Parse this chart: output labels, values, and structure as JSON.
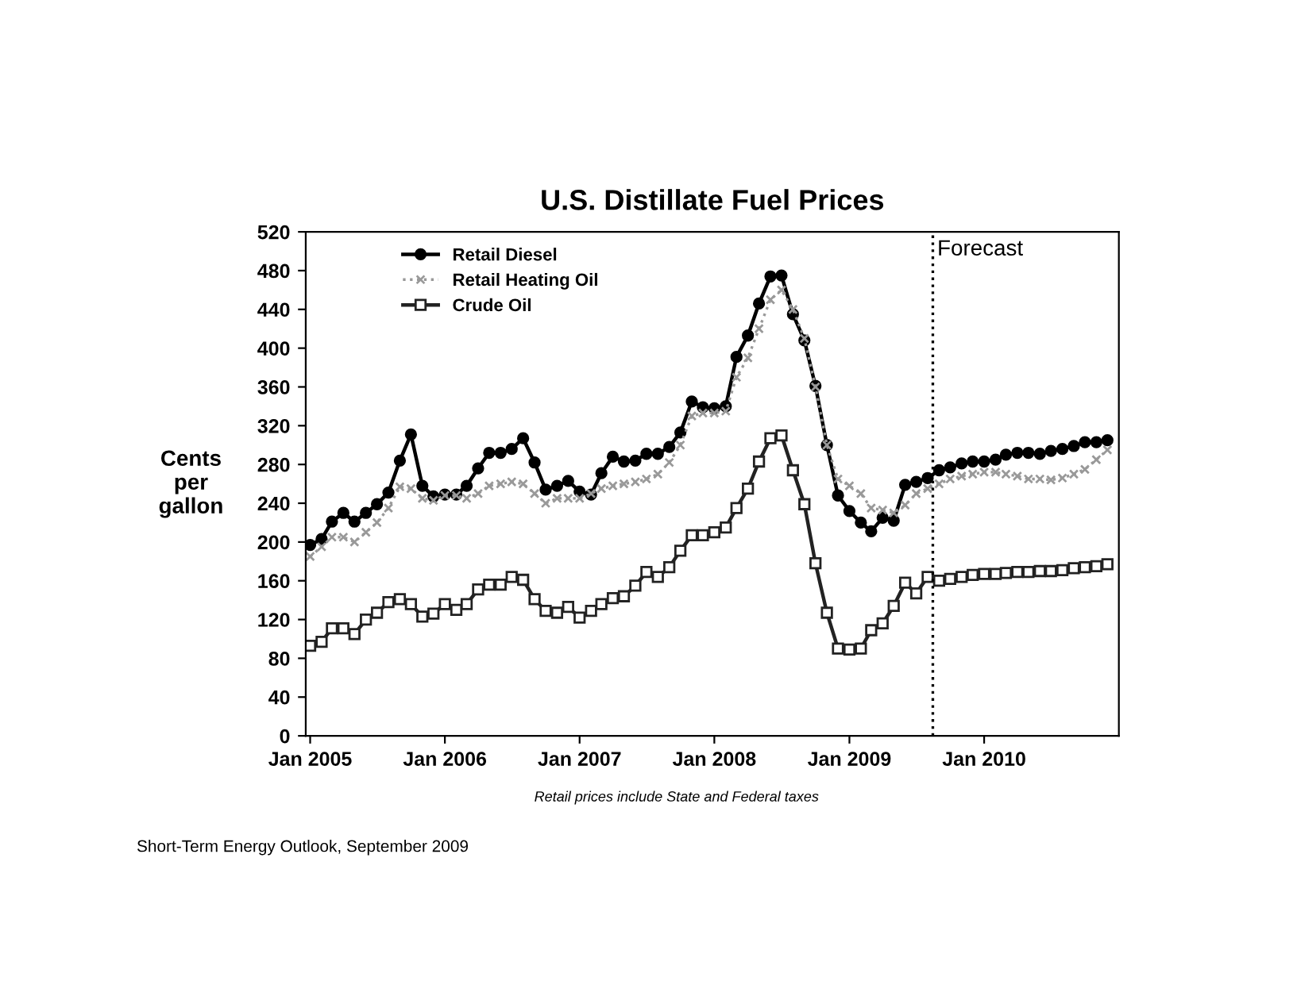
{
  "chart_data": {
    "type": "line",
    "title": "U.S. Distillate Fuel Prices",
    "ylabel": "Cents\nper\ngallon",
    "x": [
      "2005-01",
      "2005-02",
      "2005-03",
      "2005-04",
      "2005-05",
      "2005-06",
      "2005-07",
      "2005-08",
      "2005-09",
      "2005-10",
      "2005-11",
      "2005-12",
      "2006-01",
      "2006-02",
      "2006-03",
      "2006-04",
      "2006-05",
      "2006-06",
      "2006-07",
      "2006-08",
      "2006-09",
      "2006-10",
      "2006-11",
      "2006-12",
      "2007-01",
      "2007-02",
      "2007-03",
      "2007-04",
      "2007-05",
      "2007-06",
      "2007-07",
      "2007-08",
      "2007-09",
      "2007-10",
      "2007-11",
      "2007-12",
      "2008-01",
      "2008-02",
      "2008-03",
      "2008-04",
      "2008-05",
      "2008-06",
      "2008-07",
      "2008-08",
      "2008-09",
      "2008-10",
      "2008-11",
      "2008-12",
      "2009-01",
      "2009-02",
      "2009-03",
      "2009-04",
      "2009-05",
      "2009-06",
      "2009-07",
      "2009-08",
      "2009-09",
      "2009-10",
      "2009-11",
      "2009-12",
      "2010-01",
      "2010-02",
      "2010-03",
      "2010-04",
      "2010-05",
      "2010-06",
      "2010-07",
      "2010-08",
      "2010-09",
      "2010-10",
      "2010-11",
      "2010-12"
    ],
    "series": [
      {
        "name": "Retail Diesel",
        "color": "#000000",
        "marker": "circle",
        "line_style": "solid",
        "values": [
          197,
          203,
          221,
          230,
          221,
          230,
          239,
          251,
          284,
          311,
          258,
          247,
          249,
          249,
          258,
          276,
          292,
          292,
          296,
          307,
          282,
          254,
          258,
          263,
          252,
          249,
          271,
          288,
          283,
          284,
          291,
          291,
          298,
          313,
          345,
          339,
          338,
          340,
          391,
          413,
          446,
          474,
          475,
          435,
          408,
          361,
          300,
          248,
          232,
          220,
          211,
          225,
          222,
          259,
          262,
          266,
          274,
          277,
          281,
          283,
          283,
          285,
          290,
          292,
          292,
          291,
          294,
          296,
          299,
          303,
          303,
          305
        ]
      },
      {
        "name": "Retail Heating Oil",
        "color": "#999999",
        "marker": "cross",
        "line_style": "dotted",
        "values": [
          185,
          195,
          205,
          205,
          200,
          210,
          220,
          235,
          257,
          255,
          245,
          243,
          248,
          248,
          245,
          250,
          258,
          260,
          262,
          260,
          250,
          240,
          245,
          245,
          245,
          250,
          255,
          258,
          260,
          262,
          265,
          270,
          282,
          300,
          330,
          333,
          333,
          335,
          370,
          390,
          420,
          450,
          460,
          440,
          410,
          360,
          300,
          265,
          258,
          250,
          235,
          233,
          230,
          238,
          250,
          255,
          260,
          265,
          268,
          270,
          272,
          272,
          270,
          268,
          265,
          265,
          264,
          266,
          270,
          275,
          285,
          295
        ]
      },
      {
        "name": "Crude Oil",
        "color": "#222222",
        "marker": "square",
        "line_style": "solid",
        "values": [
          93,
          97,
          111,
          111,
          105,
          120,
          127,
          138,
          141,
          136,
          123,
          126,
          136,
          130,
          136,
          151,
          156,
          156,
          164,
          161,
          141,
          129,
          127,
          133,
          122,
          129,
          136,
          142,
          144,
          155,
          169,
          164,
          174,
          191,
          207,
          207,
          210,
          215,
          235,
          255,
          283,
          307,
          310,
          274,
          239,
          178,
          127,
          90,
          89,
          90,
          109,
          116,
          134,
          158,
          147,
          164,
          160,
          162,
          164,
          166,
          167,
          167,
          168,
          169,
          169,
          170,
          170,
          171,
          173,
          174,
          175,
          177
        ]
      }
    ],
    "xlim": [
      "2004-12-20",
      "2011-01-01"
    ],
    "xticks": [
      {
        "value": "2005-01",
        "label": "Jan 2005"
      },
      {
        "value": "2006-01",
        "label": "Jan 2006"
      },
      {
        "value": "2007-01",
        "label": "Jan 2007"
      },
      {
        "value": "2008-01",
        "label": "Jan 2008"
      },
      {
        "value": "2009-01",
        "label": "Jan 2009"
      },
      {
        "value": "2010-01",
        "label": "Jan 2010"
      }
    ],
    "ylim": [
      0,
      520
    ],
    "yticks": [
      0,
      40,
      80,
      120,
      160,
      200,
      240,
      280,
      320,
      360,
      400,
      440,
      480,
      520
    ],
    "ref_lines": [
      {
        "axis": "x",
        "value": "2009-08-15",
        "label": "Forecast",
        "color": "#000000",
        "line_style": "dotted"
      }
    ],
    "annotations": [
      "Retail prices include State and Federal taxes",
      "Short-Term Energy Outlook, September 2009"
    ],
    "legend": "top left",
    "grid": false
  }
}
